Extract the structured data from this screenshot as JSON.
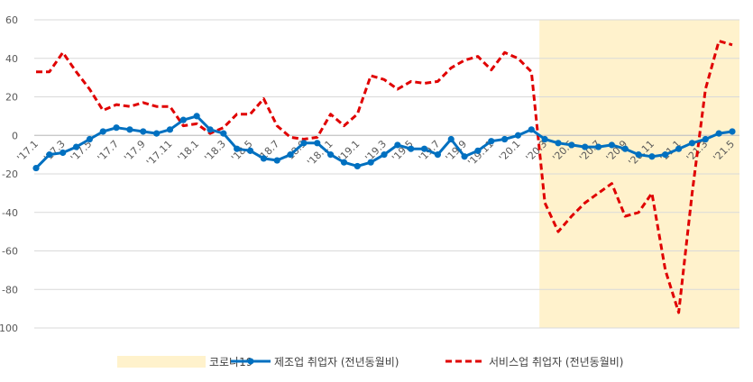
{
  "chart_data": {
    "type": "line",
    "ylim": [
      -100,
      60
    ],
    "yticks": [
      60,
      40,
      20,
      0,
      -20,
      -40,
      -60,
      -80,
      -100
    ],
    "grid": true,
    "legend_position": "bottom",
    "categories": [
      "'17.1",
      "'17.2",
      "'17.3",
      "'17.4",
      "'17.5",
      "'17.6",
      "'17.7",
      "'17.8",
      "'17.9",
      "'17.10",
      "'17.11",
      "'17.12",
      "'18.1",
      "'18.2",
      "'18.3",
      "'18.4",
      "'18.5",
      "'18.6",
      "'18.7",
      "'18.8",
      "'18.9",
      "'18.10",
      "'18.11",
      "'18.12",
      "'19.1",
      "'19.2",
      "'19.3",
      "'19.4",
      "'19.5",
      "'19.6",
      "'19.7",
      "'19.8",
      "'19.9",
      "'19.10",
      "'19.11",
      "'19.12",
      "'20.1",
      "'20.2",
      "'20.3",
      "'20.4",
      "'20.5",
      "'20.6",
      "'20.7",
      "'20.8",
      "'20.9",
      "'20.10",
      "'20.11",
      "'20.12",
      "'21.1",
      "'21.2",
      "'21.3",
      "'21.4",
      "'21.5"
    ],
    "tick_labels": [
      "'17.1",
      "'17.3",
      "'17.5",
      "'17.7",
      "'17.9",
      "'17.11",
      "'18.1",
      "'18.3",
      "'18.5",
      "'18.7",
      "'18.9",
      "'18.11",
      "'19.1",
      "'19.3",
      "'19.5",
      "'19.7",
      "'19.9",
      "'19.11",
      "'20.1",
      "'20.3",
      "'20.5",
      "'20.7",
      "'20.9",
      "'20.11",
      "'21.1",
      "'21.3",
      "'21.5"
    ],
    "highlight": {
      "name": "코로나19",
      "from": "'20.3",
      "to": "'21.5",
      "color": "#fff2cc"
    },
    "series": [
      {
        "name": "제조업 취업자 (전년동월비)",
        "color": "#0070c0",
        "style": "solid-markers",
        "values": [
          -17,
          -10,
          -9,
          -6,
          -2,
          2,
          4,
          3,
          2,
          1,
          3,
          8,
          10,
          3,
          1,
          -7,
          -8,
          -12,
          -13,
          -10,
          -4,
          -4,
          -10,
          -14,
          -16,
          -14,
          -10,
          -5,
          -7,
          -7,
          -10,
          -2,
          -11,
          -8,
          -3,
          -2,
          0,
          3,
          -2,
          -4,
          -5,
          -6,
          -6,
          -5,
          -7,
          -10,
          -11,
          -10,
          -7,
          -4,
          -2,
          1,
          2
        ]
      },
      {
        "name": "서비스업 취업자 (전년동월비)",
        "color": "#e00000",
        "style": "dashed",
        "values": [
          33,
          33,
          43,
          33,
          24,
          13,
          16,
          15,
          17,
          15,
          15,
          5,
          6,
          1,
          4,
          11,
          11,
          19,
          5,
          -1,
          -2,
          -1,
          11,
          5,
          11,
          31,
          29,
          24,
          28,
          27,
          28,
          35,
          39,
          41,
          34,
          43,
          40,
          33,
          -35,
          -50,
          -42,
          -35,
          -30,
          -25,
          -42,
          -40,
          -30,
          -70,
          -92,
          -30,
          24,
          49,
          47
        ]
      }
    ]
  }
}
